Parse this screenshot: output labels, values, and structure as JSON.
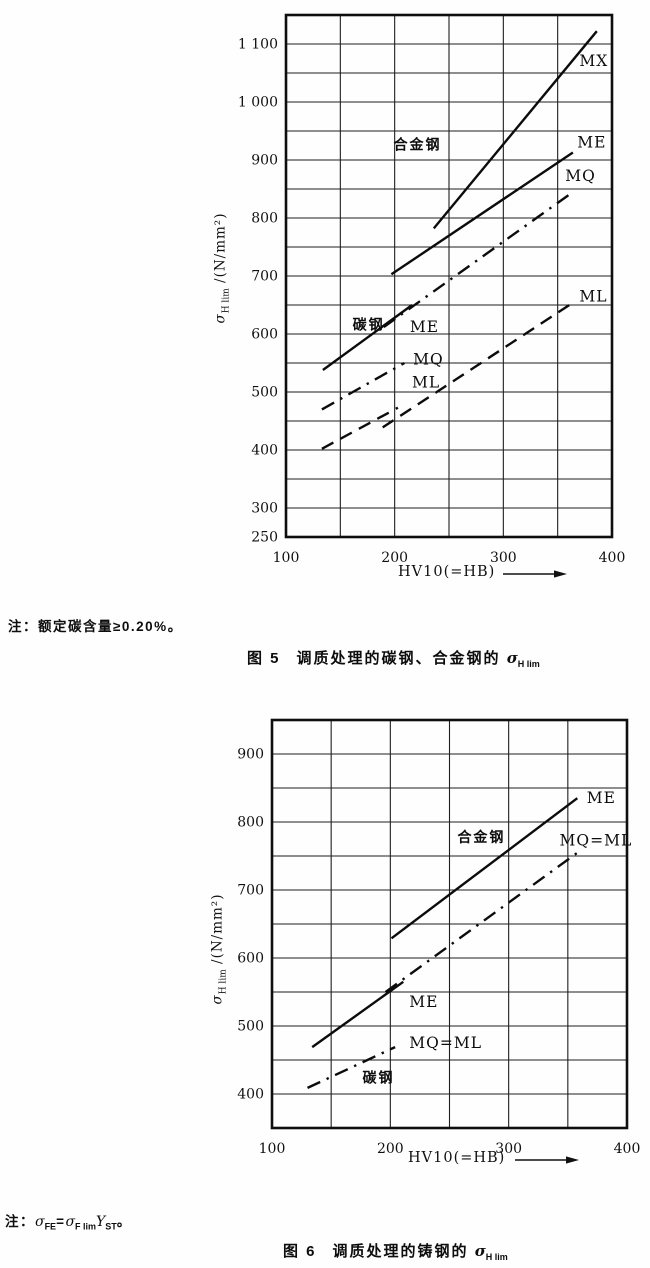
{
  "figures": {
    "fig5": {
      "note": "注：额定碳含量≥0.20%。",
      "caption_no": "图 5",
      "caption_text": "调质处理的碳钢、合金钢的",
      "caption_sigma": "σ",
      "caption_sub": "H lim"
    },
    "fig6": {
      "note": {
        "prefix": "注：",
        "sigma1": "σ",
        "sub1": "FE",
        "eq": "=",
        "sigma2": "σ",
        "sub2": "F lim",
        "ybase": "Y",
        "sub3": "ST",
        "end": "。"
      },
      "caption_no": "图 6",
      "caption_text": "调质处理的铸钢的",
      "caption_sigma": "σ",
      "caption_sub": "H lim"
    }
  },
  "chart_data": [
    {
      "id": "fig5",
      "type": "line",
      "title": "图 5 调质处理的碳钢、合金钢的 σH lim",
      "xlabel": "HV10(=HB)",
      "ylabel": "σH lim /(N/mm²)",
      "ylabel_parts": {
        "sigma": "σ",
        "sub": "H lim",
        "rest": " /(N/mm²)"
      },
      "xlim": [
        100,
        400
      ],
      "ylim": [
        250,
        1150
      ],
      "grid": true,
      "grid_step_x": 50,
      "grid_step_y": 50,
      "xticks": [
        {
          "v": 100,
          "label": "100"
        },
        {
          "v": 200,
          "label": "200"
        },
        {
          "v": 300,
          "label": "300"
        },
        {
          "v": 400,
          "label": "400"
        }
      ],
      "yticks": [
        {
          "v": 250,
          "label": "250"
        },
        {
          "v": 300,
          "label": "300"
        },
        {
          "v": 400,
          "label": "400"
        },
        {
          "v": 500,
          "label": "500"
        },
        {
          "v": 600,
          "label": "600"
        },
        {
          "v": 700,
          "label": "700"
        },
        {
          "v": 800,
          "label": "800"
        },
        {
          "v": 900,
          "label": "900"
        },
        {
          "v": 1000,
          "label": "1 000"
        },
        {
          "v": 1100,
          "label": "1 100"
        }
      ],
      "series": [
        {
          "name": "alloy-mx",
          "group": "合金钢",
          "grade": "MX",
          "style": "solid",
          "points": [
            [
              236,
              782
            ],
            [
              386,
              1122
            ]
          ]
        },
        {
          "name": "alloy-me",
          "group": "合金钢",
          "grade": "ME",
          "style": "solid",
          "points": [
            [
              197,
              703
            ],
            [
              364,
              913
            ]
          ]
        },
        {
          "name": "alloy-mq",
          "group": "合金钢",
          "grade": "MQ",
          "style": "dashdot",
          "points": [
            [
              190,
              612
            ],
            [
              362,
              842
            ]
          ]
        },
        {
          "name": "alloy-ml",
          "group": "合金钢",
          "grade": "ML",
          "style": "dashed",
          "points": [
            [
              189,
              439
            ],
            [
              364,
              654
            ]
          ]
        },
        {
          "name": "carbon-me",
          "group": "碳钢",
          "grade": "ME",
          "style": "solid",
          "points": [
            [
              134,
              538
            ],
            [
              216,
              650
            ]
          ]
        },
        {
          "name": "carbon-mq",
          "group": "碳钢",
          "grade": "MQ",
          "style": "dashdot",
          "points": [
            [
              133,
              470
            ],
            [
              209,
              550
            ]
          ]
        },
        {
          "name": "carbon-ml",
          "group": "碳钢",
          "grade": "ML",
          "style": "dashed",
          "points": [
            [
              133,
              402
            ],
            [
              203,
              473
            ]
          ]
        }
      ],
      "labels": [
        {
          "text": "MX",
          "x": 370,
          "y": 1071,
          "anchor": "start"
        },
        {
          "text": "ME",
          "x": 368,
          "y": 930,
          "anchor": "start"
        },
        {
          "text": "MQ",
          "x": 357,
          "y": 872,
          "anchor": "start"
        },
        {
          "text": "ML",
          "x": 370,
          "y": 665,
          "anchor": "start"
        },
        {
          "text": "合金钢",
          "x": 221,
          "y": 927,
          "anchor": "middle",
          "cjk": true
        },
        {
          "text": "碳钢",
          "x": 176,
          "y": 616,
          "anchor": "middle",
          "cjk": true
        },
        {
          "text": "ME",
          "x": 214,
          "y": 612,
          "anchor": "start"
        },
        {
          "text": "MQ",
          "x": 217,
          "y": 556,
          "anchor": "start"
        },
        {
          "text": "ML",
          "x": 216,
          "y": 516,
          "anchor": "start"
        }
      ]
    },
    {
      "id": "fig6",
      "type": "line",
      "title": "图 6 调质处理的铸钢的 σH lim",
      "xlabel": "HV10(=HB)",
      "ylabel": "σH lim /(N/mm²)",
      "ylabel_parts": {
        "sigma": "σ",
        "sub": "H lim",
        "rest": " /(N/mm²)"
      },
      "xlim": [
        100,
        400
      ],
      "ylim": [
        350,
        950
      ],
      "grid": true,
      "grid_step_x": 50,
      "grid_step_y": 50,
      "xticks": [
        {
          "v": 100,
          "label": "100"
        },
        {
          "v": 200,
          "label": "200"
        },
        {
          "v": 300,
          "label": "300"
        },
        {
          "v": 400,
          "label": "400"
        }
      ],
      "yticks": [
        {
          "v": 400,
          "label": "400"
        },
        {
          "v": 500,
          "label": "500"
        },
        {
          "v": 600,
          "label": "600"
        },
        {
          "v": 700,
          "label": "700"
        },
        {
          "v": 800,
          "label": "800"
        },
        {
          "v": 900,
          "label": "900"
        }
      ],
      "series": [
        {
          "name": "alloy-me",
          "group": "合金钢",
          "grade": "ME",
          "style": "solid",
          "points": [
            [
              201,
              629
            ],
            [
              358,
              835
            ]
          ]
        },
        {
          "name": "alloy-mqml",
          "group": "合金钢",
          "grade": "MQ=ML",
          "style": "dashdot",
          "points": [
            [
              196,
              550
            ],
            [
              359,
              756
            ]
          ]
        },
        {
          "name": "carbon-me",
          "group": "碳钢",
          "grade": "ME",
          "style": "solid",
          "points": [
            [
              134,
              469
            ],
            [
              211,
              565
            ]
          ]
        },
        {
          "name": "carbon-mqml",
          "group": "碳钢",
          "grade": "MQ=ML",
          "style": "dashdot",
          "points": [
            [
              130,
              409
            ],
            [
              204,
              469
            ]
          ]
        }
      ],
      "labels": [
        {
          "text": "ME",
          "x": 366,
          "y": 835,
          "anchor": "start"
        },
        {
          "text": "MQ=ML",
          "x": 343,
          "y": 773,
          "anchor": "start"
        },
        {
          "text": "合金钢",
          "x": 277,
          "y": 778,
          "anchor": "middle",
          "cjk": true
        },
        {
          "text": "ME",
          "x": 216,
          "y": 535,
          "anchor": "start"
        },
        {
          "text": "MQ=ML",
          "x": 216,
          "y": 475,
          "anchor": "start"
        },
        {
          "text": "碳钢",
          "x": 190,
          "y": 424,
          "anchor": "middle",
          "cjk": true
        }
      ]
    }
  ]
}
